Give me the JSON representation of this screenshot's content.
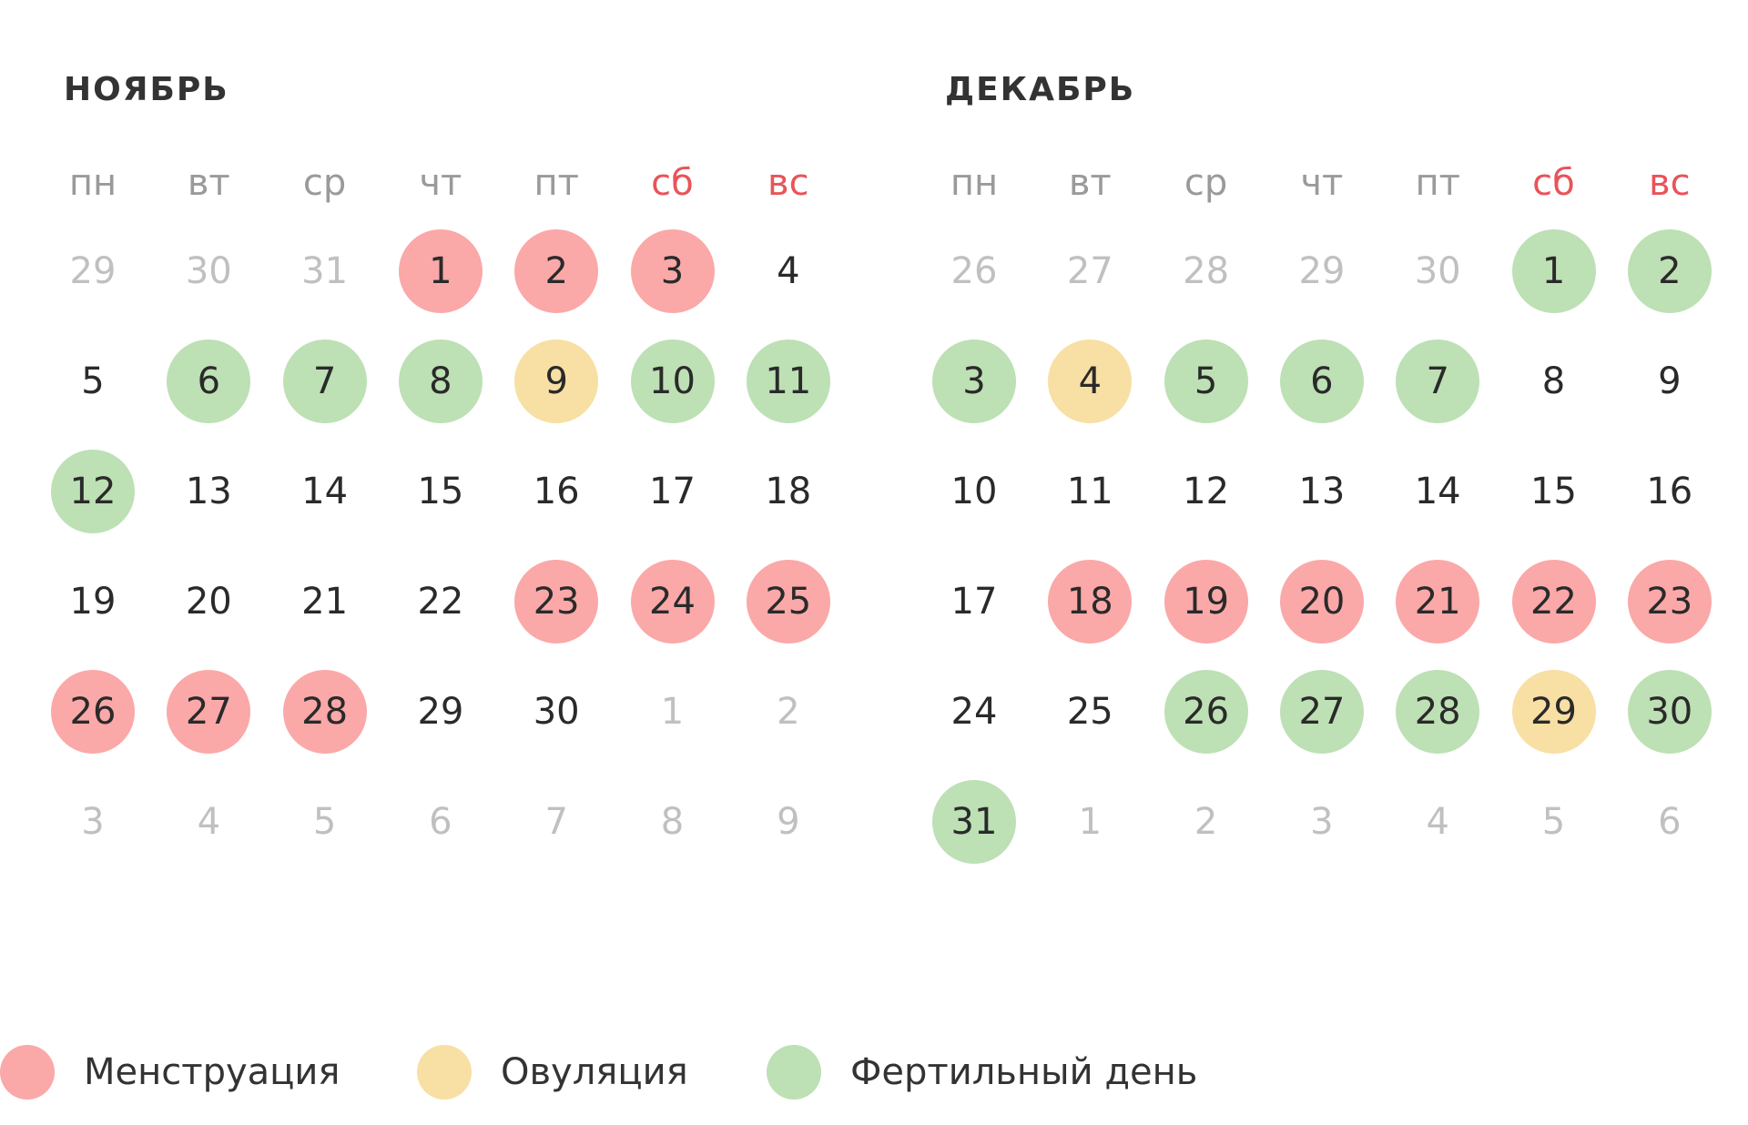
{
  "weekdays": [
    "пн",
    "вт",
    "ср",
    "чт",
    "пт",
    "сб",
    "вс"
  ],
  "colors": {
    "menstruation": "#fba8a8",
    "ovulation": "#f8dfa3",
    "fertile": "#bde0b5",
    "weekend_header": "#e8545a",
    "other_month_day": "#c0c0c0"
  },
  "months": [
    {
      "title": "НОЯБРЬ",
      "weeks": [
        [
          {
            "d": "29",
            "other": true
          },
          {
            "d": "30",
            "other": true
          },
          {
            "d": "31",
            "other": true
          },
          {
            "d": "1",
            "s": "m"
          },
          {
            "d": "2",
            "s": "m"
          },
          {
            "d": "3",
            "s": "m"
          },
          {
            "d": "4"
          }
        ],
        [
          {
            "d": "5"
          },
          {
            "d": "6",
            "s": "f"
          },
          {
            "d": "7",
            "s": "f"
          },
          {
            "d": "8",
            "s": "f"
          },
          {
            "d": "9",
            "s": "o"
          },
          {
            "d": "10",
            "s": "f"
          },
          {
            "d": "11",
            "s": "f"
          }
        ],
        [
          {
            "d": "12",
            "s": "f"
          },
          {
            "d": "13"
          },
          {
            "d": "14"
          },
          {
            "d": "15"
          },
          {
            "d": "16"
          },
          {
            "d": "17"
          },
          {
            "d": "18"
          }
        ],
        [
          {
            "d": "19"
          },
          {
            "d": "20"
          },
          {
            "d": "21"
          },
          {
            "d": "22"
          },
          {
            "d": "23",
            "s": "m"
          },
          {
            "d": "24",
            "s": "m"
          },
          {
            "d": "25",
            "s": "m"
          }
        ],
        [
          {
            "d": "26",
            "s": "m"
          },
          {
            "d": "27",
            "s": "m"
          },
          {
            "d": "28",
            "s": "m"
          },
          {
            "d": "29"
          },
          {
            "d": "30"
          },
          {
            "d": "1",
            "other": true
          },
          {
            "d": "2",
            "other": true
          }
        ],
        [
          {
            "d": "3",
            "other": true
          },
          {
            "d": "4",
            "other": true
          },
          {
            "d": "5",
            "other": true
          },
          {
            "d": "6",
            "other": true
          },
          {
            "d": "7",
            "other": true
          },
          {
            "d": "8",
            "other": true
          },
          {
            "d": "9",
            "other": true
          }
        ]
      ]
    },
    {
      "title": "ДЕКАБРЬ",
      "weeks": [
        [
          {
            "d": "26",
            "other": true
          },
          {
            "d": "27",
            "other": true
          },
          {
            "d": "28",
            "other": true
          },
          {
            "d": "29",
            "other": true
          },
          {
            "d": "30",
            "other": true
          },
          {
            "d": "1",
            "s": "f"
          },
          {
            "d": "2",
            "s": "f"
          }
        ],
        [
          {
            "d": "3",
            "s": "f"
          },
          {
            "d": "4",
            "s": "o"
          },
          {
            "d": "5",
            "s": "f"
          },
          {
            "d": "6",
            "s": "f"
          },
          {
            "d": "7",
            "s": "f"
          },
          {
            "d": "8"
          },
          {
            "d": "9"
          }
        ],
        [
          {
            "d": "10"
          },
          {
            "d": "11"
          },
          {
            "d": "12"
          },
          {
            "d": "13"
          },
          {
            "d": "14"
          },
          {
            "d": "15"
          },
          {
            "d": "16"
          }
        ],
        [
          {
            "d": "17"
          },
          {
            "d": "18",
            "s": "m"
          },
          {
            "d": "19",
            "s": "m"
          },
          {
            "d": "20",
            "s": "m"
          },
          {
            "d": "21",
            "s": "m"
          },
          {
            "d": "22",
            "s": "m"
          },
          {
            "d": "23",
            "s": "m"
          }
        ],
        [
          {
            "d": "24"
          },
          {
            "d": "25"
          },
          {
            "d": "26",
            "s": "f"
          },
          {
            "d": "27",
            "s": "f"
          },
          {
            "d": "28",
            "s": "f"
          },
          {
            "d": "29",
            "s": "o"
          },
          {
            "d": "30",
            "s": "f"
          }
        ],
        [
          {
            "d": "31",
            "s": "f"
          },
          {
            "d": "1",
            "other": true
          },
          {
            "d": "2",
            "other": true
          },
          {
            "d": "3",
            "other": true
          },
          {
            "d": "4",
            "other": true
          },
          {
            "d": "5",
            "other": true
          },
          {
            "d": "6",
            "other": true
          }
        ]
      ]
    }
  ],
  "legend": [
    {
      "key": "m",
      "label": "Менструация"
    },
    {
      "key": "o",
      "label": "Овуляция"
    },
    {
      "key": "f",
      "label": "Фертильный день"
    }
  ]
}
